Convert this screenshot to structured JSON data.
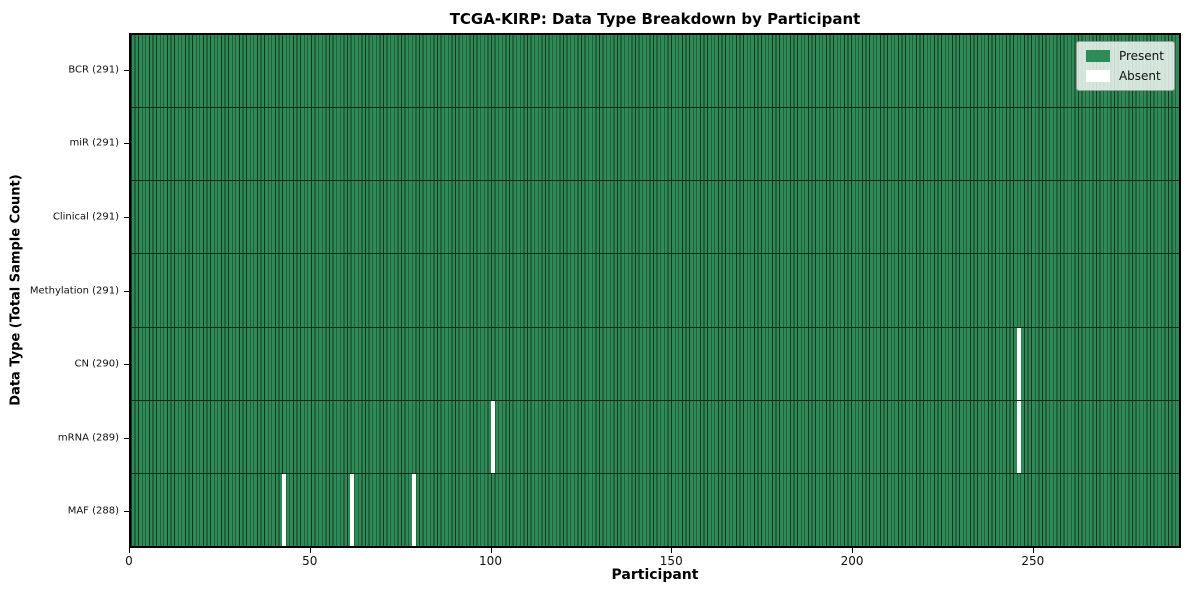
{
  "chart_data": {
    "type": "heatmap",
    "title": "TCGA-KIRP: Data Type Breakdown by Participant",
    "xlabel": "Participant",
    "ylabel": "Data Type (Total Sample Count)",
    "n_participants": 291,
    "x_ticks": [
      0,
      50,
      100,
      150,
      200,
      250
    ],
    "xlim": [
      0,
      291
    ],
    "grid": false,
    "legend_position": "upper right",
    "rows": [
      {
        "name": "BCR",
        "label": "BCR (291)",
        "total_samples": 291,
        "absent_participants": []
      },
      {
        "name": "miR",
        "label": "miR (291)",
        "total_samples": 291,
        "absent_participants": []
      },
      {
        "name": "Clinical",
        "label": "Clinical (291)",
        "total_samples": 291,
        "absent_participants": []
      },
      {
        "name": "Methylation",
        "label": "Methylation (291)",
        "total_samples": 291,
        "absent_participants": []
      },
      {
        "name": "CN",
        "label": "CN (290)",
        "total_samples": 290,
        "absent_participants": [
          246
        ]
      },
      {
        "name": "mRNA",
        "label": "mRNA (289)",
        "total_samples": 289,
        "absent_participants": [
          100,
          246
        ]
      },
      {
        "name": "MAF",
        "label": "MAF (288)",
        "total_samples": 288,
        "absent_participants": [
          42,
          61,
          78
        ]
      }
    ],
    "legend": [
      {
        "label": "Present",
        "color": "#2e8b57"
      },
      {
        "label": "Absent",
        "color": "#ffffff"
      }
    ],
    "colors": {
      "present": "#2e8b57",
      "bar_edge": "#16371f",
      "absent": "#ffffff",
      "row_divider": "#10291a",
      "spine": "#000000",
      "figure_bg": "#ffffff"
    }
  }
}
